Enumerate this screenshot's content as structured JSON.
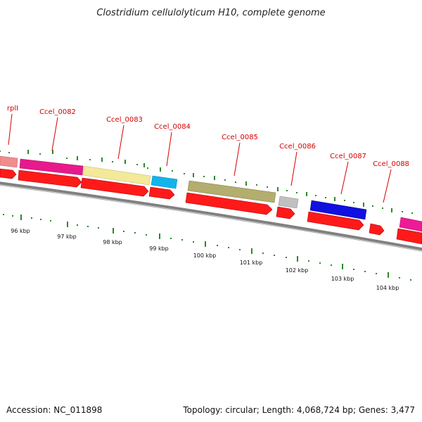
{
  "title": "Clostridium cellulolyticum H10, complete genome",
  "accession": "Accession: NC_011898",
  "summary": "Topology: circular; Length: 4,068,724 bp; Genes: 3,477",
  "labels": {
    "rplI": "rplI",
    "cc0082": "Ccel_0082",
    "cc0083": "Ccel_0083",
    "cc0084": "Ccel_0084",
    "cc0085": "Ccel_0085",
    "cc0086": "Ccel_0086",
    "cc0087": "Ccel_0087",
    "cc0088": "Ccel_0088"
  },
  "kbp": {
    "k96": "96 kbp",
    "k97": "97 kbp",
    "k98": "98 kbp",
    "k99": "99 kbp",
    "k100": "100 kbp",
    "k101": "101 kbp",
    "k102": "102 kbp",
    "k103": "103 kbp",
    "k104": "104 kbp"
  },
  "colors": {
    "cds": "#ff0000",
    "backbone": "#808080",
    "tick": "#2a8a2a",
    "label": "#d40000",
    "rplI": "#f08c8c",
    "cc0082": "#e8198c",
    "cc0083": "#f3e999",
    "cc0084": "#12b4ec",
    "cc0085": "#b3ad6e",
    "cc0086": "#c0c0c0",
    "cc0087": "#1010e0",
    "cc0088": "#ee1a96"
  }
}
